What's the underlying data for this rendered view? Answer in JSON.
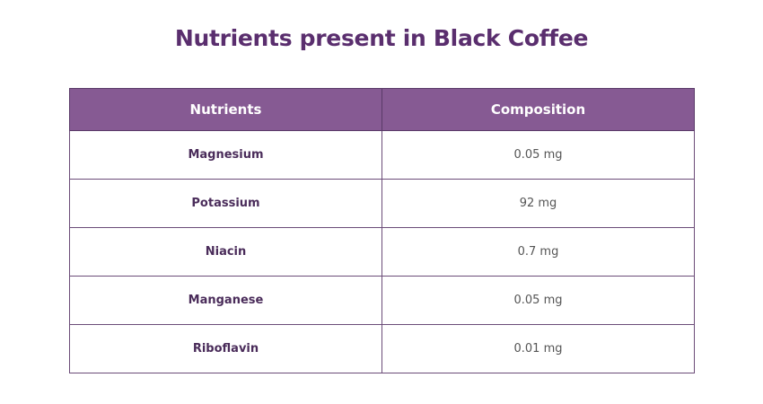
{
  "header": {
    "title": "Nutrients present in Black Coffee"
  },
  "table": {
    "columns": [
      "Nutrients",
      "Composition"
    ],
    "rows": [
      [
        "Magnesium",
        "0.05 mg"
      ],
      [
        "Potassium",
        "92 mg"
      ],
      [
        "Niacin",
        "0.7 mg"
      ],
      [
        "Manganese",
        "0.05 mg"
      ],
      [
        "Riboflavin",
        "0.01 mg"
      ]
    ]
  }
}
